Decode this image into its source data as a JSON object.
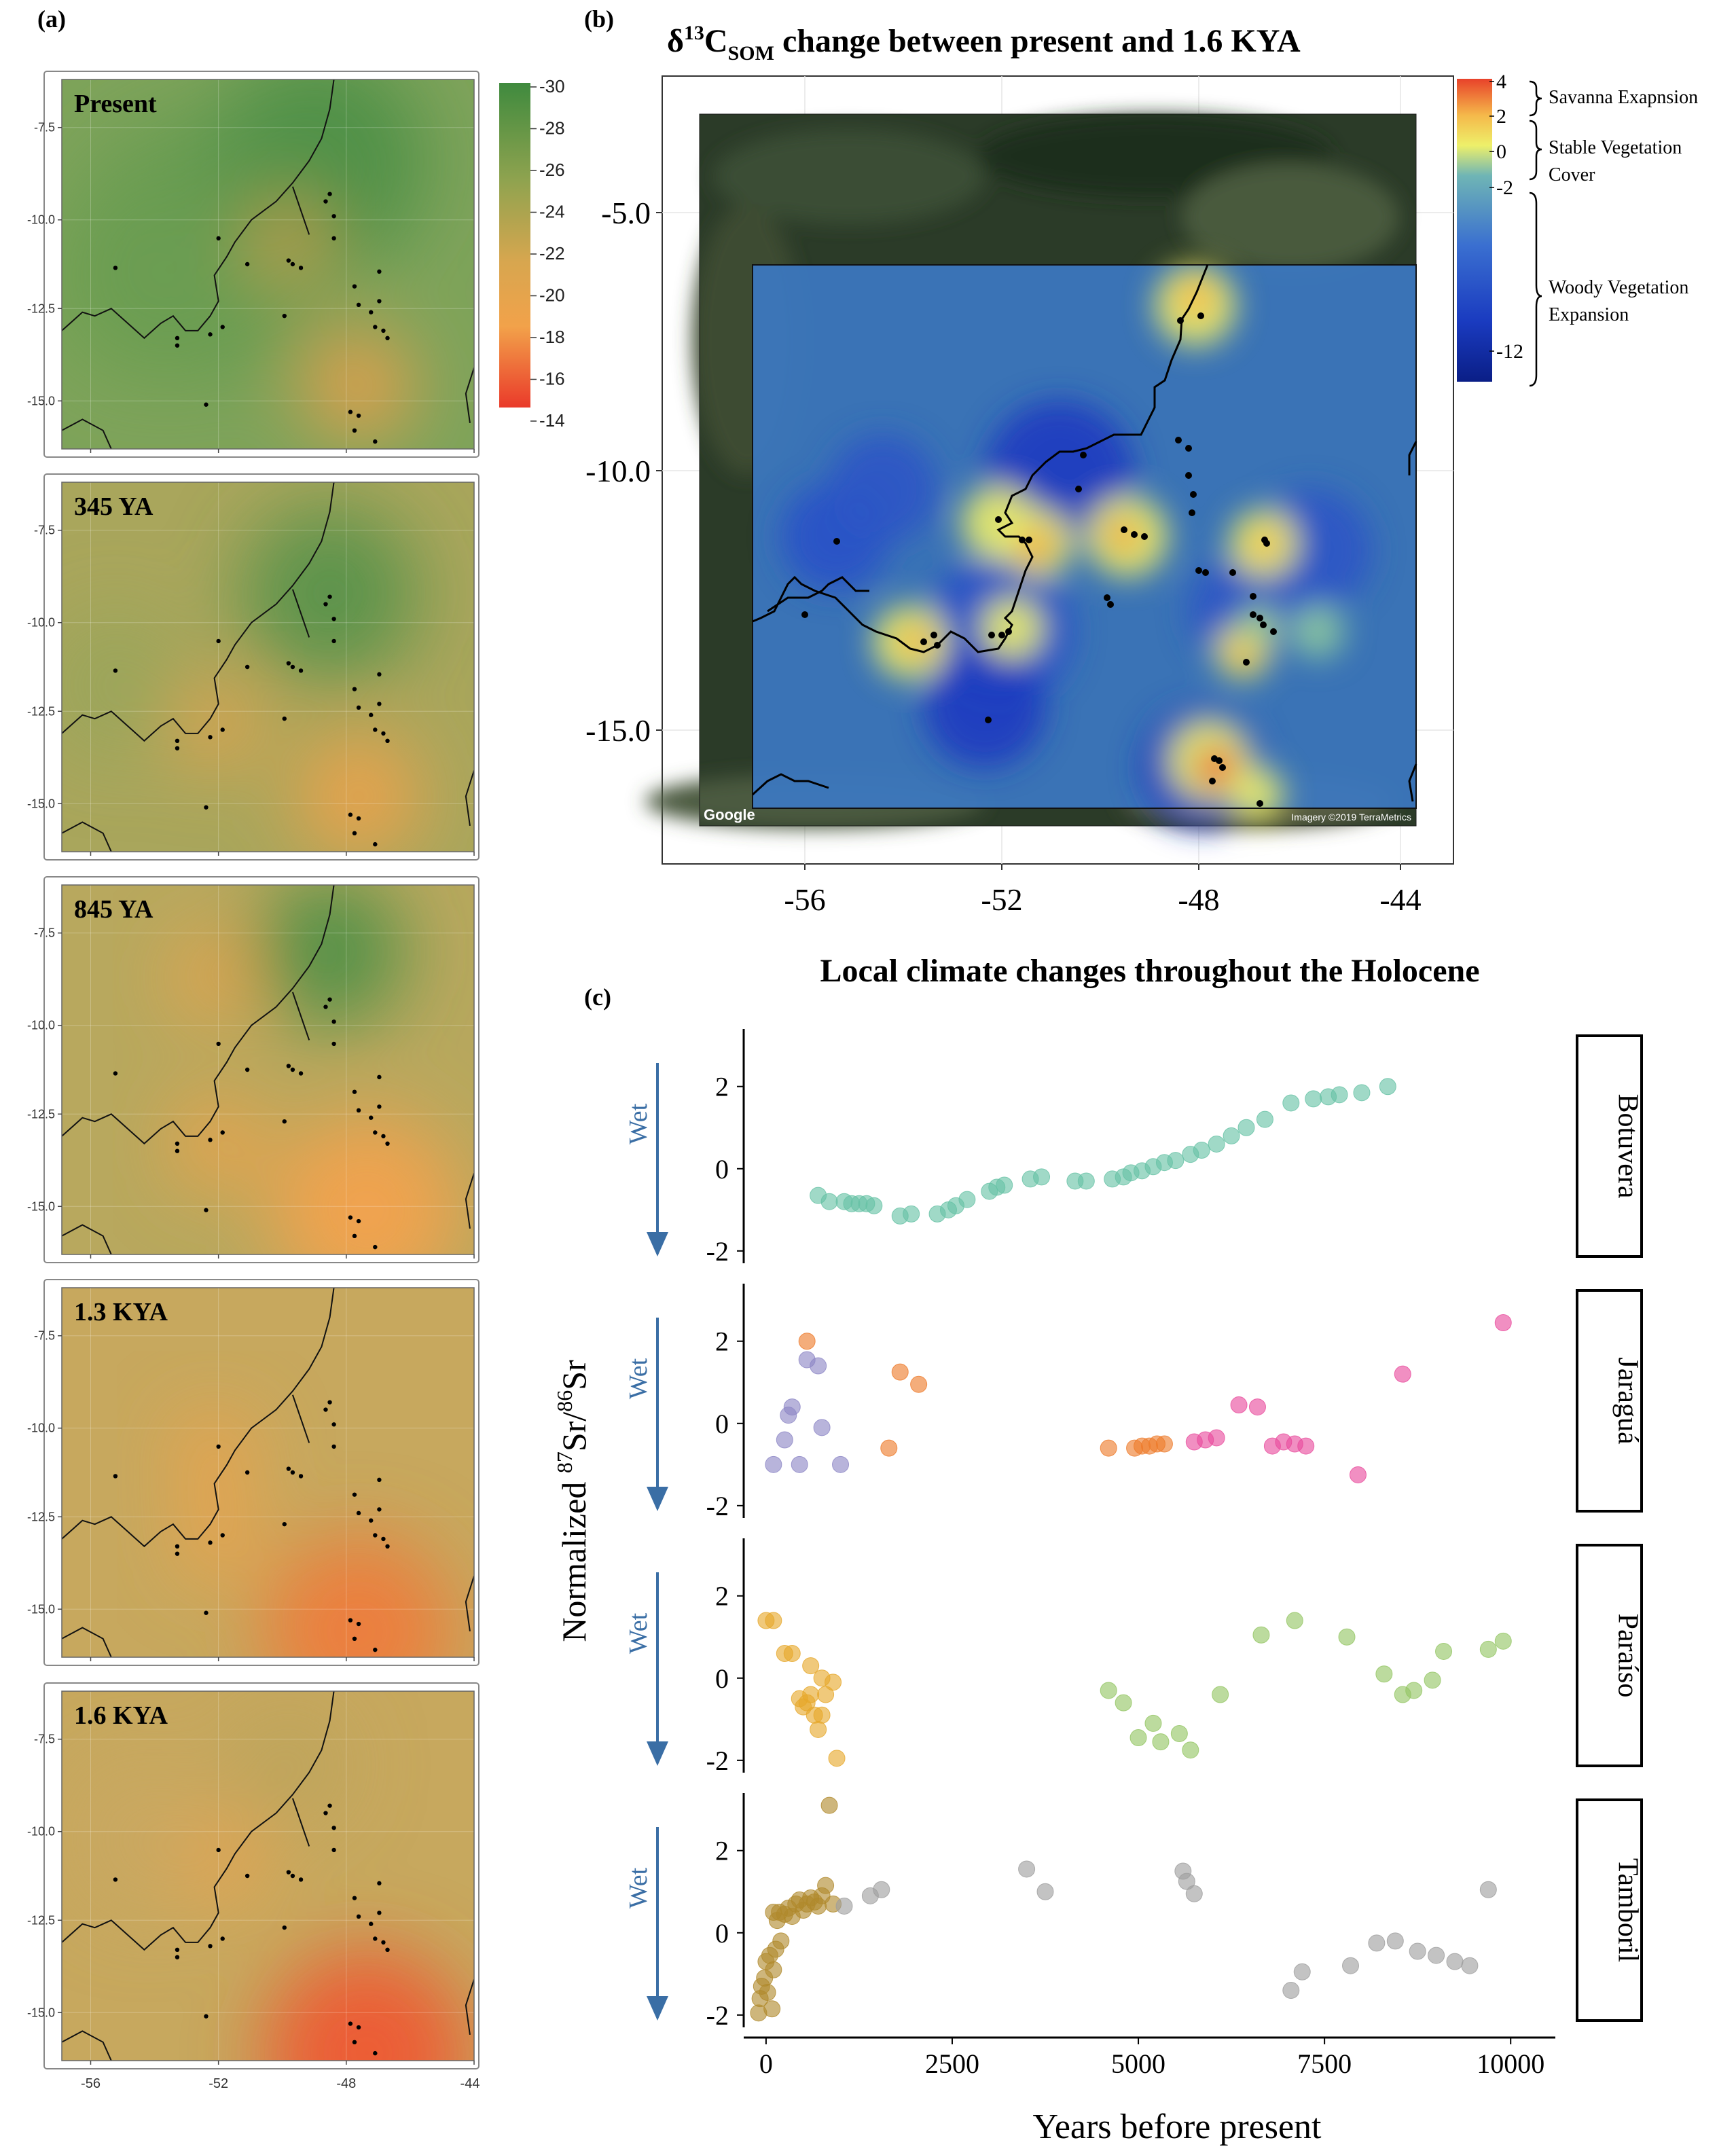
{
  "panel_labels": {
    "a": "(a)",
    "b": "(b)",
    "c": "(c)"
  },
  "panel_a": {
    "maps": [
      {
        "label": "Present"
      },
      {
        "label": "345 YA"
      },
      {
        "label": "845 YA"
      },
      {
        "label": "1.3 KYA"
      },
      {
        "label": "1.6 KYA"
      }
    ],
    "y_ticks": [
      "-7.5",
      "-10.0",
      "-12.5",
      "-15.0"
    ],
    "x_ticks": [
      "-56",
      "-52",
      "-48",
      "-44"
    ],
    "colorbar_ticks": [
      "-30",
      "-28",
      "-26",
      "-24",
      "-22",
      "-20",
      "-18",
      "-16",
      "-14"
    ],
    "colors": {
      "wet_green": "#4a8c45",
      "mid_olive": "#b3a75a",
      "dry_orange": "#f1a347",
      "hot_red": "#e8432c"
    }
  },
  "panel_b": {
    "title_prefix": "δ",
    "title_sup": "13",
    "title_c": "C",
    "title_sub": "SOM",
    "title_suffix": " change between present and 1.6 KYA",
    "y_ticks": [
      "-5.0",
      "-10.0",
      "-15.0"
    ],
    "x_ticks": [
      "-56",
      "-52",
      "-48",
      "-44"
    ],
    "colorbar_ticks": [
      "4",
      "2",
      "0",
      "-2",
      "-12"
    ],
    "legend_groups": [
      "Savanna Exapnsion",
      "Stable Vegetation",
      "Cover",
      "Woody Vegetation",
      "Expansion"
    ],
    "google_logo": "Google",
    "imagery_credit": "Imagery ©2019 TerraMetrics"
  },
  "panel_c": {
    "title": "Local climate changes throughout the Holocene",
    "y_axis_label_prefix": "Normalized ",
    "y_sup_a": "87",
    "y_mid": "Sr/",
    "y_sup_b": "86",
    "y_end": "Sr",
    "x_axis_label": "Years before present",
    "x_ticks": [
      "0",
      "2500",
      "5000",
      "7500",
      "10000"
    ],
    "y_ticks": [
      "2",
      "0",
      "-2"
    ],
    "wet_label": "Wet"
  },
  "chart_data": {
    "type": "scatter",
    "xlabel": "Years before present",
    "ylabel": "Normalized 87Sr/86Sr",
    "title": "Local climate changes throughout the Holocene",
    "xlim": [
      -300,
      10600
    ],
    "ylim": [
      -2.3,
      3.4
    ],
    "facets": [
      {
        "name": "Botuvera",
        "series": [
          {
            "color": "#66c2a5",
            "points": [
              [
                700,
                -0.65
              ],
              [
                850,
                -0.8
              ],
              [
                1050,
                -0.8
              ],
              [
                1150,
                -0.85
              ],
              [
                1250,
                -0.85
              ],
              [
                1350,
                -0.85
              ],
              [
                1450,
                -0.9
              ],
              [
                1800,
                -1.15
              ],
              [
                1950,
                -1.1
              ],
              [
                2300,
                -1.1
              ],
              [
                2450,
                -1.0
              ],
              [
                2550,
                -0.9
              ],
              [
                2700,
                -0.75
              ],
              [
                3000,
                -0.55
              ],
              [
                3100,
                -0.45
              ],
              [
                3200,
                -0.4
              ],
              [
                3550,
                -0.25
              ],
              [
                3700,
                -0.2
              ],
              [
                4150,
                -0.3
              ],
              [
                4300,
                -0.3
              ],
              [
                4650,
                -0.25
              ],
              [
                4800,
                -0.2
              ],
              [
                4900,
                -0.1
              ],
              [
                5050,
                -0.05
              ],
              [
                5200,
                0.05
              ],
              [
                5350,
                0.15
              ],
              [
                5500,
                0.2
              ],
              [
                5700,
                0.35
              ],
              [
                5850,
                0.45
              ],
              [
                6050,
                0.6
              ],
              [
                6250,
                0.8
              ],
              [
                6450,
                1.0
              ],
              [
                6700,
                1.2
              ],
              [
                7050,
                1.6
              ],
              [
                7350,
                1.7
              ],
              [
                7550,
                1.75
              ],
              [
                7700,
                1.8
              ],
              [
                8000,
                1.85
              ],
              [
                8350,
                2.0
              ]
            ]
          }
        ]
      },
      {
        "name": "Jaraguá",
        "series": [
          {
            "color": "#8c86c5",
            "points": [
              [
                100,
                -1.0
              ],
              [
                250,
                -0.4
              ],
              [
                300,
                0.2
              ],
              [
                350,
                0.4
              ],
              [
                450,
                -1.0
              ],
              [
                550,
                1.55
              ],
              [
                700,
                1.4
              ],
              [
                750,
                -0.1
              ],
              [
                1000,
                -1.0
              ]
            ]
          },
          {
            "color": "#ee7a2a",
            "points": [
              [
                550,
                2.0
              ],
              [
                1650,
                -0.6
              ],
              [
                1800,
                1.25
              ],
              [
                2050,
                0.95
              ],
              [
                4600,
                -0.6
              ],
              [
                4950,
                -0.6
              ],
              [
                5050,
                -0.55
              ],
              [
                5150,
                -0.55
              ],
              [
                5250,
                -0.5
              ],
              [
                5350,
                -0.5
              ]
            ]
          },
          {
            "color": "#e94b9c",
            "points": [
              [
                5750,
                -0.45
              ],
              [
                5900,
                -0.4
              ],
              [
                6050,
                -0.35
              ],
              [
                6350,
                0.45
              ],
              [
                6600,
                0.4
              ],
              [
                6800,
                -0.55
              ],
              [
                6950,
                -0.45
              ],
              [
                7100,
                -0.5
              ],
              [
                7250,
                -0.55
              ],
              [
                7950,
                -1.25
              ],
              [
                8550,
                1.2
              ],
              [
                9900,
                2.45
              ]
            ]
          }
        ]
      },
      {
        "name": "Paraíso",
        "series": [
          {
            "color": "#e6a82a",
            "points": [
              [
                0,
                1.4
              ],
              [
                100,
                1.4
              ],
              [
                250,
                0.6
              ],
              [
                350,
                0.6
              ],
              [
                450,
                -0.5
              ],
              [
                500,
                -0.7
              ],
              [
                550,
                -0.6
              ],
              [
                600,
                -0.4
              ],
              [
                600,
                0.3
              ],
              [
                650,
                -0.9
              ],
              [
                700,
                -1.25
              ],
              [
                750,
                -0.9
              ],
              [
                750,
                0.0
              ],
              [
                800,
                -0.4
              ],
              [
                900,
                -0.1
              ],
              [
                950,
                -1.95
              ]
            ]
          },
          {
            "color": "#93c563",
            "points": [
              [
                4600,
                -0.3
              ],
              [
                4800,
                -0.6
              ],
              [
                5000,
                -1.45
              ],
              [
                5200,
                -1.1
              ],
              [
                5300,
                -1.55
              ],
              [
                5550,
                -1.35
              ],
              [
                5700,
                -1.75
              ],
              [
                6100,
                -0.4
              ],
              [
                6650,
                1.05
              ],
              [
                7100,
                1.4
              ],
              [
                7800,
                1.0
              ],
              [
                8300,
                0.1
              ],
              [
                8550,
                -0.4
              ],
              [
                8700,
                -0.3
              ],
              [
                8950,
                -0.05
              ],
              [
                9100,
                0.65
              ],
              [
                9700,
                0.7
              ],
              [
                9900,
                0.9
              ]
            ]
          }
        ]
      },
      {
        "name": "Tamboril",
        "series": [
          {
            "color": "#b0892c",
            "points": [
              [
                -100,
                -1.95
              ],
              [
                -80,
                -1.6
              ],
              [
                -60,
                -1.3
              ],
              [
                -20,
                -1.1
              ],
              [
                0,
                -0.7
              ],
              [
                20,
                -1.45
              ],
              [
                50,
                -0.55
              ],
              [
                80,
                -1.85
              ],
              [
                100,
                -0.9
              ],
              [
                100,
                0.5
              ],
              [
                130,
                -0.4
              ],
              [
                150,
                0.3
              ],
              [
                180,
                0.5
              ],
              [
                200,
                -0.2
              ],
              [
                250,
                0.45
              ],
              [
                300,
                0.6
              ],
              [
                350,
                0.4
              ],
              [
                400,
                0.7
              ],
              [
                450,
                0.8
              ],
              [
                500,
                0.55
              ],
              [
                550,
                0.7
              ],
              [
                600,
                0.85
              ],
              [
                650,
                0.75
              ],
              [
                700,
                0.65
              ],
              [
                750,
                0.9
              ],
              [
                800,
                1.15
              ],
              [
                850,
                3.1
              ],
              [
                900,
                0.7
              ]
            ]
          },
          {
            "color": "#9e9e9e",
            "points": [
              [
                1050,
                0.65
              ],
              [
                1400,
                0.9
              ],
              [
                1550,
                1.05
              ],
              [
                3500,
                1.55
              ],
              [
                3750,
                1.0
              ],
              [
                5600,
                1.5
              ],
              [
                5650,
                1.25
              ],
              [
                5750,
                0.95
              ],
              [
                7050,
                -1.4
              ],
              [
                7200,
                -0.95
              ],
              [
                7850,
                -0.8
              ],
              [
                8200,
                -0.25
              ],
              [
                8450,
                -0.2
              ],
              [
                8750,
                -0.45
              ],
              [
                9000,
                -0.55
              ],
              [
                9250,
                -0.7
              ],
              [
                9450,
                -0.8
              ],
              [
                9700,
                1.05
              ]
            ]
          }
        ]
      }
    ]
  }
}
